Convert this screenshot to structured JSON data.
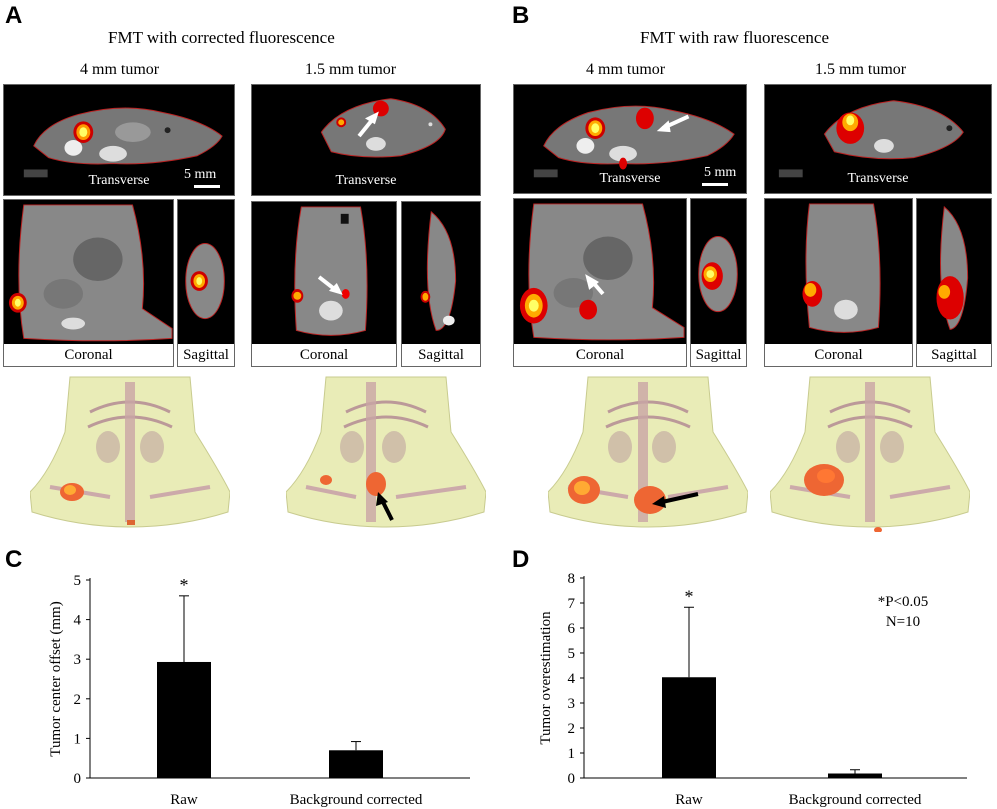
{
  "panel_a": {
    "label": "A",
    "title": "FMT with corrected fluorescence",
    "col1": {
      "tumor": "4 mm tumor",
      "transverse": "Transverse",
      "coronal": "Coronal",
      "sagittal": "Sagittal",
      "scale": "5 mm"
    },
    "col2": {
      "tumor": "1.5 mm tumor",
      "transverse": "Transverse",
      "coronal": "Coronal",
      "sagittal": "Sagittal"
    }
  },
  "panel_b": {
    "label": "B",
    "title": "FMT with raw fluorescence",
    "col1": {
      "tumor": "4 mm tumor",
      "transverse": "Transverse",
      "coronal": "Coronal",
      "sagittal": "Sagittal",
      "scale": "5 mm"
    },
    "col2": {
      "tumor": "1.5 mm tumor",
      "transverse": "Transverse",
      "coronal": "Coronal",
      "sagittal": "Sagittal"
    }
  },
  "panel_c": {
    "label": "C"
  },
  "panel_d": {
    "label": "D",
    "annotation_p": "*P<0.05",
    "annotation_n": "N=10"
  },
  "chart_data": [
    {
      "type": "bar",
      "panel": "C",
      "categories": [
        "Raw",
        "Background corrected"
      ],
      "values": [
        2.93,
        0.7
      ],
      "errors": [
        1.67,
        0.22
      ],
      "significance": [
        "*",
        ""
      ],
      "ylabel": "Tumor center offset (mm)",
      "ylim": [
        0,
        5
      ],
      "yticks": [
        0,
        1,
        2,
        3,
        4,
        5
      ],
      "bar_color": "#000000"
    },
    {
      "type": "bar",
      "panel": "D",
      "categories": [
        "Raw",
        "Background corrected"
      ],
      "values": [
        4.03,
        0.18
      ],
      "errors": [
        2.8,
        0.15
      ],
      "significance": [
        "*",
        ""
      ],
      "ylabel": "Tumor overestimation",
      "ylim": [
        0,
        8
      ],
      "yticks": [
        0,
        1,
        2,
        3,
        4,
        5,
        6,
        7,
        8
      ],
      "bar_color": "#000000"
    }
  ]
}
